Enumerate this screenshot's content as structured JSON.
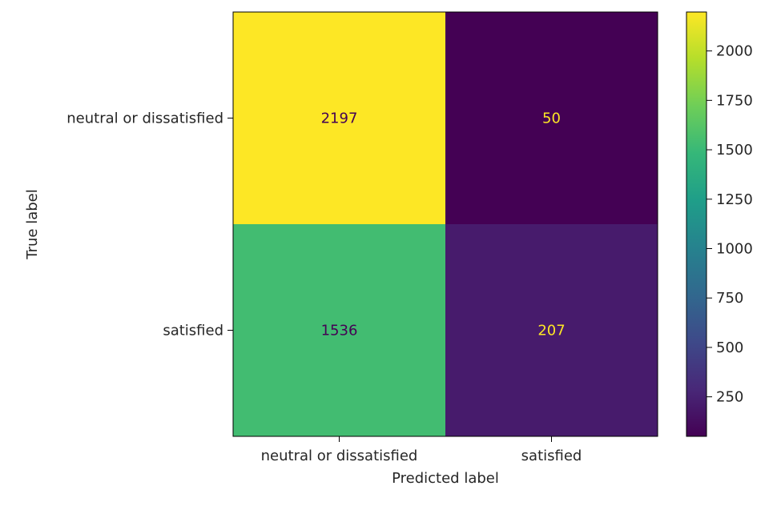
{
  "chart_data": {
    "type": "heatmap",
    "xlabel": "Predicted label",
    "ylabel": "True label",
    "x_categories": [
      "neutral or dissatisfied",
      "satisfied"
    ],
    "y_categories": [
      "neutral or dissatisfied",
      "satisfied"
    ],
    "values": [
      [
        2197,
        50
      ],
      [
        1536,
        207
      ]
    ],
    "colormap": "viridis",
    "colorbar": {
      "min": 50,
      "max": 2197,
      "ticks": [
        250,
        500,
        750,
        1000,
        1250,
        1500,
        1750,
        2000
      ]
    },
    "grid": false
  }
}
